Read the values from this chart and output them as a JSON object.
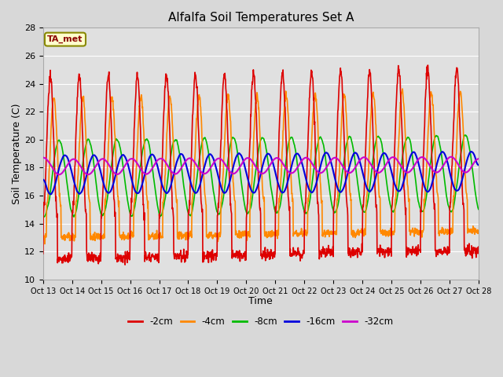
{
  "title": "Alfalfa Soil Temperatures Set A",
  "xlabel": "Time",
  "ylabel": "Soil Temperature (C)",
  "ylim": [
    10,
    28
  ],
  "xlim": [
    0,
    15
  ],
  "xtick_labels": [
    "Oct 13",
    "Oct 14",
    "Oct 15",
    "Oct 16",
    "Oct 17",
    "Oct 18",
    "Oct 19",
    "Oct 20",
    "Oct 21",
    "Oct 22",
    "Oct 23",
    "Oct 24",
    "Oct 25",
    "Oct 26",
    "Oct 27",
    "Oct 28"
  ],
  "ytick_values": [
    10,
    12,
    14,
    16,
    18,
    20,
    22,
    24,
    26,
    28
  ],
  "series_labels": [
    "-2cm",
    "-4cm",
    "-8cm",
    "-16cm",
    "-32cm"
  ],
  "series_colors": [
    "#dd0000",
    "#ff8800",
    "#00bb00",
    "#0000dd",
    "#cc00cc"
  ],
  "series_linewidths": [
    1.2,
    1.2,
    1.2,
    1.5,
    1.5
  ],
  "annotation_text": "TA_met",
  "plot_bg_color": "#e8e8e8",
  "title_fontsize": 11,
  "axis_label_fontsize": 9,
  "tick_fontsize": 8
}
